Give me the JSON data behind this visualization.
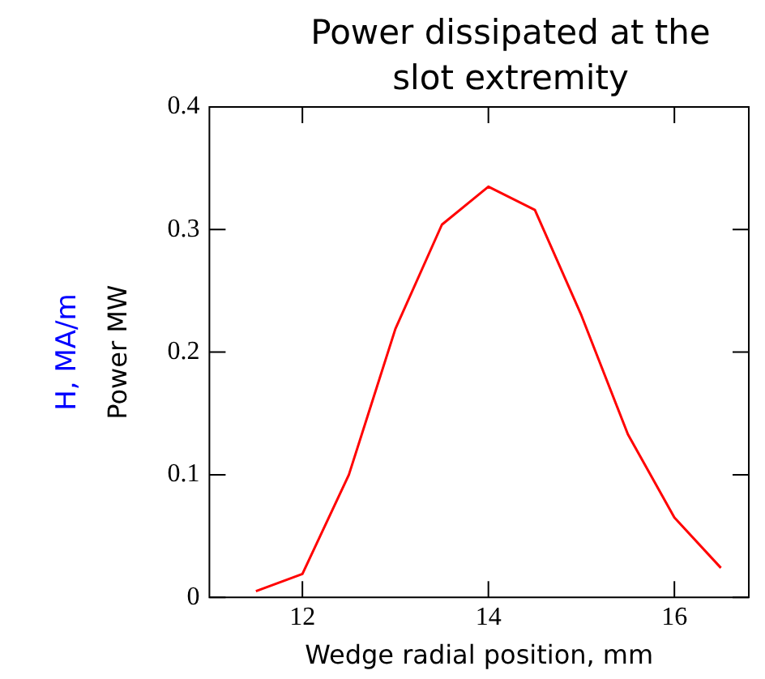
{
  "chart_data": {
    "type": "line",
    "title": "Power dissipated at the slot extremity",
    "xlabel": "Wedge radial position, mm",
    "ylabel": "Power MW",
    "y2label": "H, MA/m",
    "x": [
      11.5,
      12,
      12.5,
      13,
      13.5,
      14,
      14.5,
      15,
      15.5,
      16,
      16.5
    ],
    "series": [
      {
        "color": "#ff0000",
        "values": [
          0.005,
          0.019,
          0.1,
          0.219,
          0.304,
          0.335,
          0.316,
          0.23,
          0.133,
          0.065,
          0.024
        ]
      }
    ],
    "xlim": [
      11,
      16.8
    ],
    "xticks": [
      12,
      14,
      16
    ],
    "ylim": [
      0,
      0.4
    ],
    "yticks": [
      0,
      0.1,
      0.2,
      0.3,
      0.4
    ],
    "grid": false,
    "legend": false,
    "marker": "none",
    "line_style": "solid"
  }
}
